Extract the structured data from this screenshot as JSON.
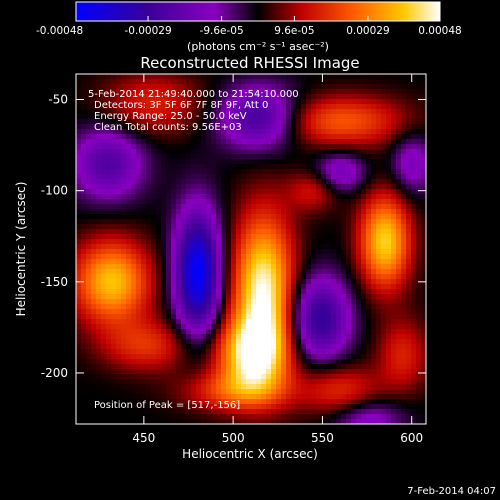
{
  "chart_data": {
    "type": "heatmap",
    "title": "Reconstructed RHESSI Image",
    "xlabel": "Heliocentric X (arcsec)",
    "ylabel": "Heliocentric Y (arcsec)",
    "xlim": [
      412,
      608
    ],
    "ylim": [
      -228,
      -36
    ],
    "x_ticks": [
      450,
      500,
      550,
      600
    ],
    "x_tick_labels": [
      "450",
      "500",
      "550",
      "600"
    ],
    "y_ticks": [
      -50,
      -100,
      -150,
      -200
    ],
    "y_tick_labels": [
      "-50",
      "-100",
      "-150",
      "-200"
    ],
    "colorbar": {
      "range": [
        -0.00048,
        0.00048
      ],
      "ticks": [
        -0.00048,
        -0.00029,
        -9.6e-05,
        9.6e-05,
        0.00029,
        0.00048
      ],
      "tick_labels": [
        "-0.00048",
        "-0.00029",
        "-9.6e-05",
        "9.6e-05",
        "0.00029",
        "0.00048"
      ],
      "unit_label": "(photons cm⁻² s⁻¹ asec⁻²)",
      "colors": [
        "#0000ff",
        "#3a0097",
        "#8a00c0",
        "#000000",
        "#c00000",
        "#ff5a00",
        "#ffc800",
        "#ffffff"
      ]
    },
    "annotations": {
      "time": "5-Feb-2014 21:49:40.000 to 21:54:10.000",
      "detectors": "Detectors: 3F 5F 6F 7F 8F 9F, Att 0",
      "energy": "Energy Range: 25.0 - 50.0 keV",
      "clean": "Clean    Total counts: 9.56E+03",
      "peak": "Position of Peak = [517,-156]"
    },
    "peak": {
      "x": 517,
      "y": -156
    },
    "sources": [
      {
        "x": 517,
        "y": -156,
        "sx": 12,
        "sy": 30,
        "amp": 0.00048
      },
      {
        "x": 510,
        "y": -190,
        "sx": 14,
        "sy": 14,
        "amp": 0.00036
      },
      {
        "x": 500,
        "y": -210,
        "sx": 20,
        "sy": 8,
        "amp": 0.0002
      },
      {
        "x": 432,
        "y": -150,
        "sx": 15,
        "sy": 16,
        "amp": 0.00038
      },
      {
        "x": 452,
        "y": -185,
        "sx": 18,
        "sy": 10,
        "amp": 0.00018
      },
      {
        "x": 585,
        "y": -128,
        "sx": 10,
        "sy": 18,
        "amp": 0.0004
      },
      {
        "x": 560,
        "y": -62,
        "sx": 26,
        "sy": 10,
        "amp": 0.00024
      },
      {
        "x": 455,
        "y": -52,
        "sx": 20,
        "sy": 12,
        "amp": 0.00016
      },
      {
        "x": 545,
        "y": -100,
        "sx": 10,
        "sy": 8,
        "amp": 0.00014
      },
      {
        "x": 560,
        "y": -210,
        "sx": 16,
        "sy": 10,
        "amp": 0.00018
      },
      {
        "x": 595,
        "y": -190,
        "sx": 10,
        "sy": 14,
        "amp": 0.00016
      },
      {
        "x": 480,
        "y": -145,
        "sx": 9,
        "sy": 24,
        "amp": -0.00048
      },
      {
        "x": 515,
        "y": -60,
        "sx": 16,
        "sy": 12,
        "amp": -0.0003
      },
      {
        "x": 430,
        "y": -85,
        "sx": 14,
        "sy": 14,
        "amp": -0.00024
      },
      {
        "x": 548,
        "y": -170,
        "sx": 12,
        "sy": 16,
        "amp": -0.00032
      },
      {
        "x": 560,
        "y": -90,
        "sx": 10,
        "sy": 8,
        "amp": -0.00018
      },
      {
        "x": 600,
        "y": -85,
        "sx": 8,
        "sy": 12,
        "amp": -0.00016
      },
      {
        "x": 575,
        "y": -225,
        "sx": 14,
        "sy": 8,
        "amp": -0.00016
      }
    ]
  },
  "footer": {
    "date": "7-Feb-2014 04:07"
  }
}
